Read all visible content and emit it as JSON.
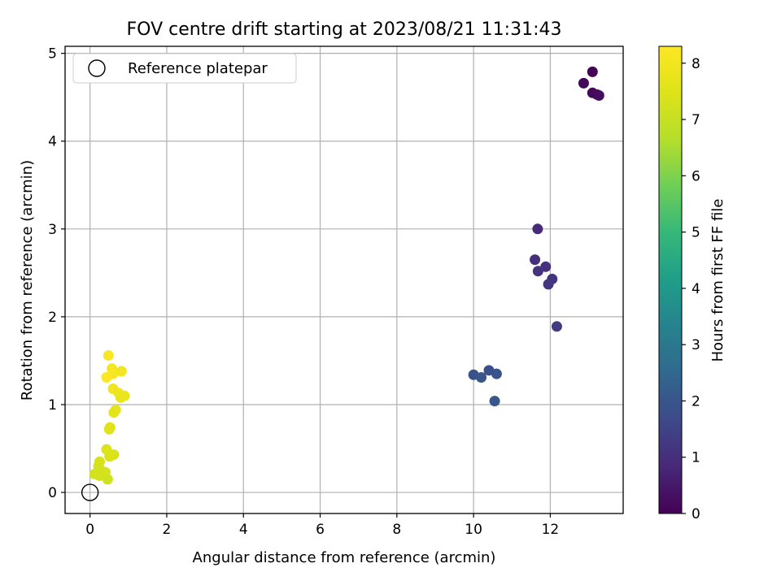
{
  "chart_data": {
    "type": "scatter",
    "title": "FOV centre drift starting at 2023/08/21 11:31:43",
    "xlabel": "Angular distance from reference (arcmin)",
    "ylabel": "Rotation from reference (arcmin)",
    "xlim": [
      -0.65,
      13.9
    ],
    "ylim": [
      -0.24,
      5.08
    ],
    "xticks": [
      0,
      2,
      4,
      6,
      8,
      10,
      12
    ],
    "xtick_labels": [
      "0",
      "2",
      "4",
      "6",
      "8",
      "10",
      "12"
    ],
    "yticks": [
      0,
      1,
      2,
      3,
      4,
      5
    ],
    "ytick_labels": [
      "0",
      "1",
      "2",
      "3",
      "4",
      "5"
    ],
    "grid": true,
    "legend": {
      "placement": "upper-left",
      "entries": [
        "Reference platepar"
      ]
    },
    "reference_point": {
      "name": "Reference platepar",
      "x": 0,
      "y": 0
    },
    "colorbar": {
      "label": "Hours from first FF file",
      "colormap": "viridis",
      "range": [
        0,
        8.3
      ],
      "ticks": [
        0,
        1,
        2,
        3,
        4,
        5,
        6,
        7,
        8
      ],
      "tick_labels": [
        "0",
        "1",
        "2",
        "3",
        "4",
        "5",
        "6",
        "7",
        "8"
      ]
    },
    "points": [
      {
        "x": 13.1,
        "y": 4.79,
        "c": 0.05
      },
      {
        "x": 12.87,
        "y": 4.66,
        "c": 0.1
      },
      {
        "x": 13.1,
        "y": 4.55,
        "c": 0.15
      },
      {
        "x": 13.22,
        "y": 4.53,
        "c": 0.2
      },
      {
        "x": 13.27,
        "y": 4.52,
        "c": 0.25
      },
      {
        "x": 11.67,
        "y": 3.0,
        "c": 0.9
      },
      {
        "x": 11.6,
        "y": 2.65,
        "c": 1.0
      },
      {
        "x": 11.88,
        "y": 2.57,
        "c": 1.05
      },
      {
        "x": 11.68,
        "y": 2.52,
        "c": 1.1
      },
      {
        "x": 12.05,
        "y": 2.43,
        "c": 1.15
      },
      {
        "x": 11.95,
        "y": 2.37,
        "c": 1.2
      },
      {
        "x": 12.17,
        "y": 1.89,
        "c": 1.3
      },
      {
        "x": 10.4,
        "y": 1.39,
        "c": 1.85
      },
      {
        "x": 10.0,
        "y": 1.34,
        "c": 1.9
      },
      {
        "x": 10.6,
        "y": 1.35,
        "c": 1.95
      },
      {
        "x": 10.2,
        "y": 1.31,
        "c": 2.0
      },
      {
        "x": 10.55,
        "y": 1.04,
        "c": 2.05
      },
      {
        "x": 0.48,
        "y": 1.56,
        "c": 8.2
      },
      {
        "x": 0.57,
        "y": 1.41,
        "c": 8.1
      },
      {
        "x": 0.6,
        "y": 1.35,
        "c": 8.15
      },
      {
        "x": 0.82,
        "y": 1.38,
        "c": 8.0
      },
      {
        "x": 0.43,
        "y": 1.31,
        "c": 8.25
      },
      {
        "x": 0.6,
        "y": 1.18,
        "c": 7.95
      },
      {
        "x": 0.75,
        "y": 1.13,
        "c": 7.9
      },
      {
        "x": 0.9,
        "y": 1.1,
        "c": 7.85
      },
      {
        "x": 0.8,
        "y": 1.08,
        "c": 7.8
      },
      {
        "x": 0.67,
        "y": 0.94,
        "c": 7.7
      },
      {
        "x": 0.62,
        "y": 0.91,
        "c": 7.65
      },
      {
        "x": 0.52,
        "y": 0.74,
        "c": 7.6
      },
      {
        "x": 0.5,
        "y": 0.72,
        "c": 7.55
      },
      {
        "x": 0.43,
        "y": 0.49,
        "c": 7.45
      },
      {
        "x": 0.62,
        "y": 0.43,
        "c": 7.4
      },
      {
        "x": 0.51,
        "y": 0.41,
        "c": 7.45
      },
      {
        "x": 0.25,
        "y": 0.35,
        "c": 7.35
      },
      {
        "x": 0.22,
        "y": 0.3,
        "c": 7.35
      },
      {
        "x": 0.25,
        "y": 0.27,
        "c": 7.3
      },
      {
        "x": 0.4,
        "y": 0.23,
        "c": 7.3
      },
      {
        "x": 0.12,
        "y": 0.21,
        "c": 7.25
      },
      {
        "x": 0.25,
        "y": 0.19,
        "c": 7.25
      },
      {
        "x": 0.46,
        "y": 0.15,
        "c": 7.2
      }
    ]
  }
}
